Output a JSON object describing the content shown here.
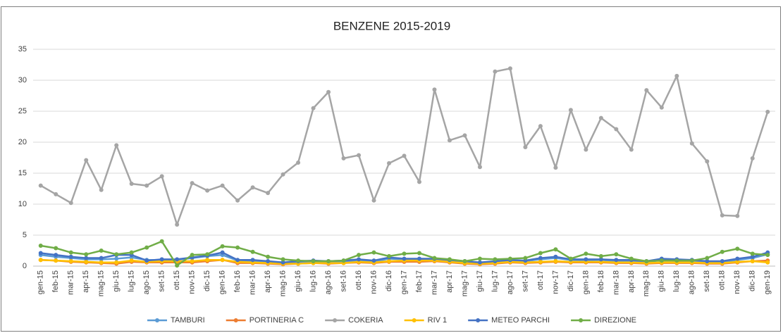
{
  "chart_data": {
    "type": "line",
    "title": "BENZENE 2015-2019",
    "categories": [
      "gen-15",
      "feb-15",
      "mar-15",
      "apr-15",
      "mag-15",
      "giu-15",
      "lug-15",
      "ago-15",
      "set-15",
      "ott-15",
      "nov-15",
      "dic-15",
      "gen-16",
      "feb-16",
      "mar-16",
      "apr-16",
      "mag-16",
      "giu-16",
      "lug-16",
      "ago-16",
      "set-16",
      "ott-16",
      "nov-16",
      "dic-16",
      "gen-17",
      "feb-17",
      "mar-17",
      "apr-17",
      "mag-17",
      "giu-17",
      "lug-17",
      "ago-17",
      "set-17",
      "ott-17",
      "nov-17",
      "dic-17",
      "gen-18",
      "feb-18",
      "mar-18",
      "apr-18",
      "mag-18",
      "giu-18",
      "lug-18",
      "ago-18",
      "set-18",
      "ott-18",
      "nov-18",
      "dic-18",
      "gen-19"
    ],
    "series": [
      {
        "name": "TAMBURI",
        "color": "#5b9bd5",
        "values": [
          1.8,
          1.5,
          1.3,
          1.1,
          1.1,
          1.2,
          1.4,
          1,
          1,
          1,
          1.3,
          1.6,
          1.8,
          0.9,
          0.8,
          0.6,
          0.5,
          0.6,
          0.7,
          0.7,
          0.7,
          0.9,
          0.7,
          1.2,
          1.1,
          1.1,
          1.1,
          0.9,
          0.7,
          0.5,
          0.6,
          0.8,
          0.8,
          1.1,
          1.3,
          1,
          0.9,
          1,
          0.8,
          0.8,
          0.6,
          1,
          0.9,
          0.8,
          0.6,
          0.6,
          1,
          1.3,
          1.9
        ]
      },
      {
        "name": "PORTINERIA C",
        "color": "#ed7d31",
        "values": [
          1,
          0.9,
          0.7,
          0.6,
          0.5,
          0.4,
          0.7,
          0.6,
          0.6,
          0.6,
          0.6,
          0.8,
          1,
          0.5,
          0.5,
          0.4,
          0.3,
          0.4,
          0.5,
          0.4,
          0.5,
          0.6,
          0.5,
          0.7,
          0.7,
          0.7,
          0.8,
          0.6,
          0.4,
          0.3,
          0.4,
          0.6,
          0.5,
          0.6,
          0.7,
          0.6,
          0.6,
          0.6,
          0.5,
          0.5,
          0.4,
          0.5,
          0.5,
          0.5,
          0.4,
          0.4,
          0.6,
          0.8,
          0.9
        ]
      },
      {
        "name": "COKERIA",
        "color": "#a5a5a5",
        "values": [
          13,
          11.6,
          10.2,
          17.1,
          12.3,
          19.5,
          13.3,
          13,
          14.5,
          6.7,
          13.4,
          12.2,
          13,
          10.6,
          12.7,
          11.8,
          14.8,
          16.7,
          25.5,
          28.1,
          17.4,
          17.9,
          10.6,
          16.6,
          17.8,
          13.6,
          28.5,
          20.3,
          21.1,
          16,
          31.4,
          31.9,
          19.2,
          22.6,
          15.9,
          25.2,
          18.8,
          23.9,
          22.1,
          18.8,
          28.4,
          25.6,
          30.7,
          19.8,
          16.9,
          8.2,
          8.1,
          17.4,
          24.9
        ]
      },
      {
        "name": "RIV 1",
        "color": "#ffc000",
        "values": [
          1,
          0.9,
          0.8,
          0.7,
          0.6,
          0.6,
          0.9,
          0.7,
          0.8,
          0.8,
          0.8,
          1,
          1,
          0.7,
          0.6,
          0.5,
          0.4,
          0.4,
          0.5,
          0.5,
          0.5,
          0.7,
          0.6,
          0.8,
          0.9,
          0.9,
          0.9,
          0.7,
          0.5,
          0.4,
          0.5,
          0.7,
          0.6,
          0.7,
          0.8,
          0.7,
          0.7,
          0.7,
          0.6,
          0.6,
          0.5,
          0.6,
          0.6,
          0.6,
          0.5,
          0.5,
          0.7,
          0.8,
          0.6
        ]
      },
      {
        "name": "METEO PARCHI",
        "color": "#4472c4",
        "values": [
          2.1,
          1.8,
          1.5,
          1.3,
          1.3,
          1.8,
          1.8,
          0.9,
          1.1,
          1.1,
          1.4,
          1.7,
          2.2,
          1,
          1,
          0.8,
          0.6,
          0.8,
          0.9,
          0.8,
          0.9,
          1.1,
          0.9,
          1.4,
          1.2,
          1.2,
          1.2,
          1,
          0.8,
          0.6,
          0.8,
          1,
          0.9,
          1.3,
          1.5,
          1.1,
          1.1,
          1.1,
          1,
          1,
          0.8,
          1.2,
          1.1,
          1,
          0.8,
          0.8,
          1.2,
          1.5,
          2.2
        ]
      },
      {
        "name": "DIREZIONE",
        "color": "#70ad47",
        "values": [
          3.3,
          2.9,
          2.2,
          1.9,
          2.5,
          1.9,
          2.2,
          3,
          4,
          0.1,
          1.8,
          1.9,
          3.2,
          3,
          2.3,
          1.5,
          1.1,
          0.9,
          0.8,
          0.8,
          0.9,
          1.8,
          2.2,
          1.6,
          2,
          2.1,
          1.3,
          1.1,
          0.8,
          1.2,
          1.1,
          1.2,
          1.3,
          2.1,
          2.7,
          1.2,
          2,
          1.6,
          1.9,
          1.2,
          0.8,
          0.9,
          0.9,
          0.9,
          1.3,
          2.3,
          2.8,
          2,
          1.8
        ]
      }
    ],
    "ylim": [
      0,
      35
    ],
    "yticks": [
      0,
      5,
      10,
      15,
      20,
      25,
      30,
      35
    ],
    "grid": true,
    "legend": "bottom"
  }
}
